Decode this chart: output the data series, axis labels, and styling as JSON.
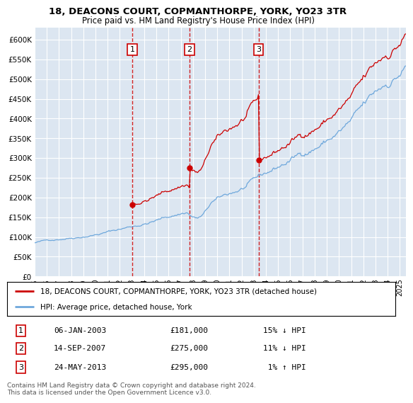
{
  "title_line1": "18, DEACONS COURT, COPMANTHORPE, YORK, YO23 3TR",
  "title_line2": "Price paid vs. HM Land Registry's House Price Index (HPI)",
  "ylim": [
    0,
    630000
  ],
  "xlim_start": 1995.0,
  "xlim_end": 2025.5,
  "purchase_dates": [
    2003.02,
    2007.71,
    2013.39
  ],
  "purchase_prices": [
    181000,
    275000,
    295000
  ],
  "purchase_labels": [
    "1",
    "2",
    "3"
  ],
  "hpi_color": "#6fa8dc",
  "price_color": "#cc0000",
  "vline_color": "#cc0000",
  "plot_bg_color": "#dce6f1",
  "legend_entries": [
    "18, DEACONS COURT, COPMANTHORPE, YORK, YO23 3TR (detached house)",
    "HPI: Average price, detached house, York"
  ],
  "table_rows": [
    [
      "1",
      "06-JAN-2003",
      "£181,000",
      "15% ↓ HPI"
    ],
    [
      "2",
      "14-SEP-2007",
      "£275,000",
      "11% ↓ HPI"
    ],
    [
      "3",
      "24-MAY-2013",
      "£295,000",
      " 1% ↑ HPI"
    ]
  ],
  "footer_text": "Contains HM Land Registry data © Crown copyright and database right 2024.\nThis data is licensed under the Open Government Licence v3.0.",
  "ytick_vals": [
    0,
    50000,
    100000,
    150000,
    200000,
    250000,
    300000,
    350000,
    400000,
    450000,
    500000,
    550000,
    600000
  ],
  "xtick_years": [
    1995,
    1996,
    1997,
    1998,
    1999,
    2000,
    2001,
    2002,
    2003,
    2004,
    2005,
    2006,
    2007,
    2008,
    2009,
    2010,
    2011,
    2012,
    2013,
    2014,
    2015,
    2016,
    2017,
    2018,
    2019,
    2020,
    2021,
    2022,
    2023,
    2024,
    2025
  ]
}
